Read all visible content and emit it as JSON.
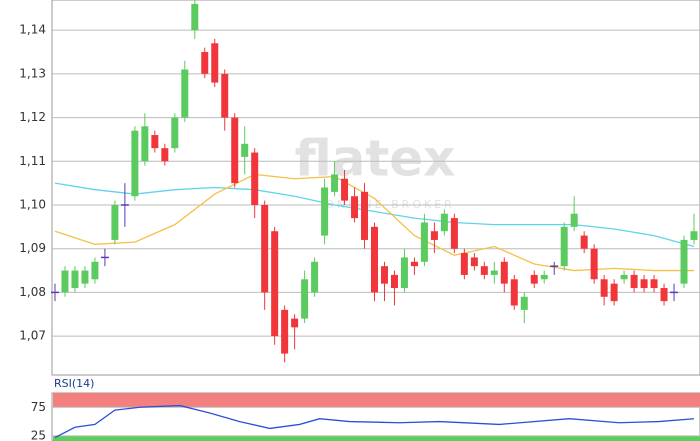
{
  "chart_data": [
    {
      "type": "candlestick",
      "watermark": {
        "logo": "flatex",
        "tagline": "ONLINE BROKER"
      },
      "up_color": "#5ccb5f",
      "down_color": "#f0363b",
      "doji_color": "#5b3bb5",
      "open": [
        1.08,
        1.08,
        1.081,
        1.082,
        1.083,
        1.088,
        1.092,
        1.1,
        1.102,
        1.11,
        1.116,
        1.113,
        1.113,
        1.12,
        1.14,
        1.135,
        1.137,
        1.13,
        1.12,
        1.111,
        1.112,
        1.1,
        1.094,
        1.076,
        1.074,
        1.074,
        1.08,
        1.093,
        1.103,
        1.106,
        1.102,
        1.103,
        1.095,
        1.086,
        1.084,
        1.081,
        1.087,
        1.087,
        1.094,
        1.094,
        1.097,
        1.089,
        1.088,
        1.086,
        1.084,
        1.087,
        1.083,
        1.076,
        1.084,
        1.083,
        1.086,
        1.086,
        1.095,
        1.093,
        1.09,
        1.083,
        1.082,
        1.083,
        1.084,
        1.083,
        1.083,
        1.081,
        1.08,
        1.082,
        1.092
      ],
      "high": [
        1.082,
        1.086,
        1.086,
        1.086,
        1.088,
        1.09,
        1.101,
        1.105,
        1.118,
        1.121,
        1.117,
        1.114,
        1.121,
        1.133,
        1.147,
        1.136,
        1.138,
        1.131,
        1.121,
        1.118,
        1.113,
        1.101,
        1.095,
        1.077,
        1.075,
        1.085,
        1.088,
        1.106,
        1.11,
        1.108,
        1.104,
        1.105,
        1.096,
        1.087,
        1.085,
        1.09,
        1.088,
        1.098,
        1.096,
        1.099,
        1.098,
        1.09,
        1.089,
        1.087,
        1.087,
        1.088,
        1.084,
        1.08,
        1.085,
        1.085,
        1.087,
        1.096,
        1.102,
        1.094,
        1.091,
        1.084,
        1.083,
        1.085,
        1.085,
        1.084,
        1.084,
        1.082,
        1.082,
        1.093,
        1.098
      ],
      "low": [
        1.078,
        1.079,
        1.08,
        1.081,
        1.082,
        1.086,
        1.091,
        1.095,
        1.101,
        1.109,
        1.112,
        1.109,
        1.112,
        1.119,
        1.138,
        1.129,
        1.127,
        1.117,
        1.104,
        1.107,
        1.097,
        1.076,
        1.068,
        1.064,
        1.067,
        1.073,
        1.079,
        1.091,
        1.102,
        1.1,
        1.096,
        1.09,
        1.078,
        1.078,
        1.077,
        1.08,
        1.084,
        1.086,
        1.089,
        1.093,
        1.089,
        1.083,
        1.085,
        1.083,
        1.082,
        1.08,
        1.076,
        1.073,
        1.081,
        1.082,
        1.084,
        1.085,
        1.094,
        1.089,
        1.082,
        1.077,
        1.077,
        1.082,
        1.08,
        1.08,
        1.08,
        1.077,
        1.078,
        1.081,
        1.091
      ],
      "close": [
        1.08,
        1.085,
        1.085,
        1.085,
        1.087,
        1.088,
        1.1,
        1.1,
        1.117,
        1.118,
        1.113,
        1.11,
        1.12,
        1.131,
        1.146,
        1.13,
        1.128,
        1.12,
        1.105,
        1.114,
        1.1,
        1.08,
        1.07,
        1.066,
        1.072,
        1.083,
        1.087,
        1.104,
        1.107,
        1.101,
        1.097,
        1.092,
        1.08,
        1.082,
        1.081,
        1.088,
        1.086,
        1.096,
        1.092,
        1.098,
        1.09,
        1.084,
        1.086,
        1.084,
        1.085,
        1.082,
        1.077,
        1.079,
        1.082,
        1.084,
        1.086,
        1.095,
        1.098,
        1.09,
        1.083,
        1.079,
        1.078,
        1.084,
        1.081,
        1.081,
        1.081,
        1.078,
        1.08,
        1.092,
        1.094
      ],
      "lines": [
        {
          "color": "#5fd4e8",
          "x": [
            0,
            4,
            8,
            12,
            16,
            20,
            24,
            28,
            32,
            36,
            40,
            44,
            48,
            52,
            56,
            60,
            64
          ],
          "values": [
            1.105,
            1.1035,
            1.1025,
            1.1035,
            1.104,
            1.1035,
            1.102,
            1.1,
            1.0985,
            1.097,
            1.096,
            1.0955,
            1.0955,
            1.0955,
            1.0945,
            1.093,
            1.0905
          ]
        },
        {
          "color": "#f5c048",
          "x": [
            0,
            4,
            8,
            12,
            16,
            20,
            24,
            28,
            32,
            36,
            40,
            44,
            48,
            52,
            56,
            60,
            64
          ],
          "values": [
            1.094,
            1.091,
            1.0915,
            1.0955,
            1.1025,
            1.107,
            1.106,
            1.1065,
            1.1015,
            1.093,
            1.0885,
            1.0905,
            1.0865,
            1.085,
            1.0855,
            1.085,
            1.085
          ]
        }
      ],
      "ylim": [
        1.0611,
        1.1469
      ],
      "yticks": [
        {
          "value": 1.14,
          "label": "1,14"
        },
        {
          "value": 1.13,
          "label": "1,13"
        },
        {
          "value": 1.12,
          "label": "1,12"
        },
        {
          "value": 1.11,
          "label": "1,11"
        },
        {
          "value": 1.1,
          "label": "1,10"
        },
        {
          "value": 1.09,
          "label": "1,09"
        },
        {
          "value": 1.08,
          "label": "1,08"
        },
        {
          "value": 1.07,
          "label": "1,07"
        }
      ],
      "grid": true
    },
    {
      "type": "line",
      "title": "RSI(14)",
      "series": [
        {
          "color": "#2b50d8",
          "x": [
            0,
            2,
            4,
            6,
            8.5,
            12.5,
            15.5,
            18.5,
            21.5,
            24.5,
            26.5,
            29.5,
            34.5,
            38.5,
            44.5,
            51.5,
            56.5,
            60.5,
            64
          ],
          "values": [
            22,
            40,
            45,
            70,
            75,
            78,
            65,
            50,
            38,
            45,
            55,
            50,
            48,
            50,
            45,
            55,
            48,
            50,
            55
          ]
        }
      ],
      "bands": [
        {
          "from": 75,
          "to": 100,
          "color": "#f47f7f"
        },
        {
          "from": 16,
          "to": 25,
          "color": "#5dcf5d"
        }
      ],
      "ylim": [
        16,
        100
      ],
      "yticks": [
        75,
        25
      ],
      "grid": true
    }
  ]
}
